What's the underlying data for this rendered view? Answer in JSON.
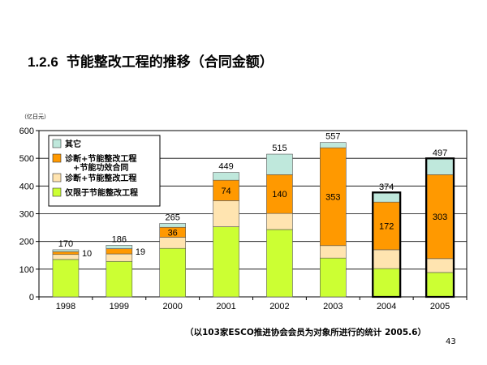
{
  "slide": {
    "title_number": "1.2.6",
    "title_text": "节能整改工程的推移（合同金额）",
    "footnote": "（以103家ESCO推进协会会员为对象所进行的统计 2005.6）",
    "page_number": "43"
  },
  "chart_data": {
    "type": "bar",
    "stacked": true,
    "unit_label": "（亿日元）",
    "categories": [
      "1998",
      "1999",
      "2000",
      "2001",
      "2002",
      "2003",
      "2004",
      "2005"
    ],
    "ylim": [
      0,
      600
    ],
    "yticks": [
      0,
      100,
      200,
      300,
      400,
      500,
      600
    ],
    "grid": true,
    "legend_position": "top-left",
    "series": [
      {
        "name": "仅限于节能整改工程",
        "color": "#ccff33",
        "values": [
          135,
          128,
          175,
          253,
          243,
          140,
          102,
          88
        ]
      },
      {
        "name": "诊断+节能整改工程",
        "color": "#ffe4b0",
        "values": [
          18,
          27,
          40,
          94,
          58,
          45,
          68,
          50
        ]
      },
      {
        "name": "诊断+节能整改工程 +节能功效合同",
        "name_lines": [
          "诊断+节能整改工程",
          "+节能功效合同"
        ],
        "color": "#ff9900",
        "values": [
          10,
          19,
          36,
          74,
          140,
          353,
          172,
          303
        ]
      },
      {
        "name": "其它",
        "color": "#bfe8dc",
        "values": [
          7,
          12,
          14,
          28,
          74,
          19,
          32,
          56
        ]
      }
    ],
    "totals": [
      170,
      186,
      265,
      449,
      515,
      557,
      374,
      497
    ],
    "highlighted_bars": [
      "2004",
      "2005"
    ]
  }
}
